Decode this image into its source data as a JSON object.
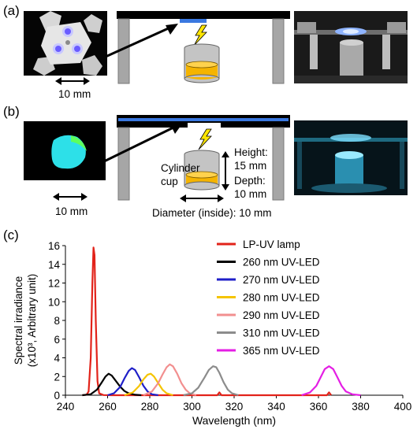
{
  "panel_a": {
    "label": "(a)",
    "dim_label": "10 mm"
  },
  "panel_b": {
    "label": "(b)",
    "dim_label": "10 mm",
    "cup_label_1": "Cylinder",
    "cup_label_2": "cup",
    "height_label_1": "Height:",
    "height_label_2": "15 mm",
    "depth_label_1": "Depth:",
    "depth_label_2": "10 mm",
    "diameter_label": "Diameter (inside): 10 mm"
  },
  "panel_c": {
    "label": "(c)"
  },
  "colors": {
    "lp_uv": "#e2231a",
    "led_260": "#000000",
    "led_270": "#1f1fc8",
    "led_280": "#f5c400",
    "led_290": "#f28f8f",
    "led_310": "#8c8c8c",
    "led_365": "#e41ee4",
    "liquid": "#f5b400",
    "uv_blue": "#3a78e0"
  },
  "chart_data": {
    "type": "line",
    "xlabel": "Wavelength (nm)",
    "ylabel_line1": "Spectral irradiance",
    "ylabel_line2": "(x10³, Arbitrary unit)",
    "xlim": [
      240,
      400
    ],
    "ylim": [
      0,
      16
    ],
    "x_ticks": [
      240,
      260,
      280,
      300,
      320,
      340,
      360,
      380,
      400
    ],
    "y_ticks": [
      0,
      2,
      4,
      6,
      8,
      10,
      12,
      14,
      16
    ],
    "legend_position": "top-right",
    "series": [
      {
        "name": "LP-UV lamp",
        "color": "#e2231a",
        "points": [
          [
            248,
            0
          ],
          [
            250,
            0.05
          ],
          [
            251,
            0.4
          ],
          [
            252,
            4.0
          ],
          [
            252.8,
            12.0
          ],
          [
            253.3,
            15.8
          ],
          [
            253.8,
            15.0
          ],
          [
            254.4,
            8.0
          ],
          [
            255.2,
            1.5
          ],
          [
            256,
            0.2
          ],
          [
            258,
            0.02
          ],
          [
            262,
            0
          ],
          [
            312,
            0
          ],
          [
            313,
            0.3
          ],
          [
            314,
            0
          ],
          [
            364,
            0
          ],
          [
            365,
            0.3
          ],
          [
            366,
            0
          ]
        ]
      },
      {
        "name": "260 nm UV-LED",
        "color": "#000000",
        "points": [
          [
            248,
            0
          ],
          [
            252,
            0.1
          ],
          [
            255,
            0.6
          ],
          [
            257,
            1.3
          ],
          [
            259,
            2.0
          ],
          [
            260.5,
            2.3
          ],
          [
            262,
            2.1
          ],
          [
            264,
            1.5
          ],
          [
            266,
            0.9
          ],
          [
            268,
            0.45
          ],
          [
            270,
            0.2
          ],
          [
            273,
            0.05
          ],
          [
            276,
            0
          ]
        ]
      },
      {
        "name": "270 nm UV-LED",
        "color": "#1f1fc8",
        "points": [
          [
            260,
            0
          ],
          [
            263,
            0.2
          ],
          [
            266,
            0.9
          ],
          [
            268,
            1.8
          ],
          [
            270,
            2.6
          ],
          [
            271.5,
            2.9
          ],
          [
            273,
            2.7
          ],
          [
            275,
            1.9
          ],
          [
            277,
            1.0
          ],
          [
            279,
            0.4
          ],
          [
            281,
            0.1
          ],
          [
            284,
            0
          ]
        ]
      },
      {
        "name": "280 nm UV-LED",
        "color": "#f5c400",
        "points": [
          [
            268,
            0
          ],
          [
            272,
            0.3
          ],
          [
            275,
            1.0
          ],
          [
            277,
            1.7
          ],
          [
            279,
            2.2
          ],
          [
            280.5,
            2.3
          ],
          [
            282,
            2.0
          ],
          [
            284,
            1.3
          ],
          [
            286,
            0.6
          ],
          [
            288,
            0.2
          ],
          [
            291,
            0
          ]
        ]
      },
      {
        "name": "290 nm UV-LED",
        "color": "#f28f8f",
        "points": [
          [
            277,
            0
          ],
          [
            281,
            0.4
          ],
          [
            284,
            1.3
          ],
          [
            286,
            2.2
          ],
          [
            288,
            3.0
          ],
          [
            289.5,
            3.3
          ],
          [
            291,
            3.1
          ],
          [
            293,
            2.3
          ],
          [
            295,
            1.3
          ],
          [
            297,
            0.6
          ],
          [
            299,
            0.2
          ],
          [
            302,
            0
          ]
        ]
      },
      {
        "name": "310 nm UV-LED",
        "color": "#8c8c8c",
        "points": [
          [
            296,
            0
          ],
          [
            300,
            0.2
          ],
          [
            303,
            0.8
          ],
          [
            306,
            1.9
          ],
          [
            308,
            2.7
          ],
          [
            310,
            3.1
          ],
          [
            311.5,
            3.0
          ],
          [
            313,
            2.4
          ],
          [
            315,
            1.4
          ],
          [
            317,
            0.6
          ],
          [
            319,
            0.2
          ],
          [
            322,
            0
          ]
        ]
      },
      {
        "name": "365 nm UV-LED",
        "color": "#e41ee4",
        "points": [
          [
            352,
            0
          ],
          [
            356,
            0.3
          ],
          [
            359,
            1.0
          ],
          [
            361,
            1.9
          ],
          [
            363,
            2.8
          ],
          [
            365,
            3.1
          ],
          [
            367,
            2.8
          ],
          [
            369,
            1.9
          ],
          [
            371,
            1.0
          ],
          [
            373,
            0.4
          ],
          [
            376,
            0.1
          ],
          [
            380,
            0
          ]
        ]
      }
    ]
  }
}
